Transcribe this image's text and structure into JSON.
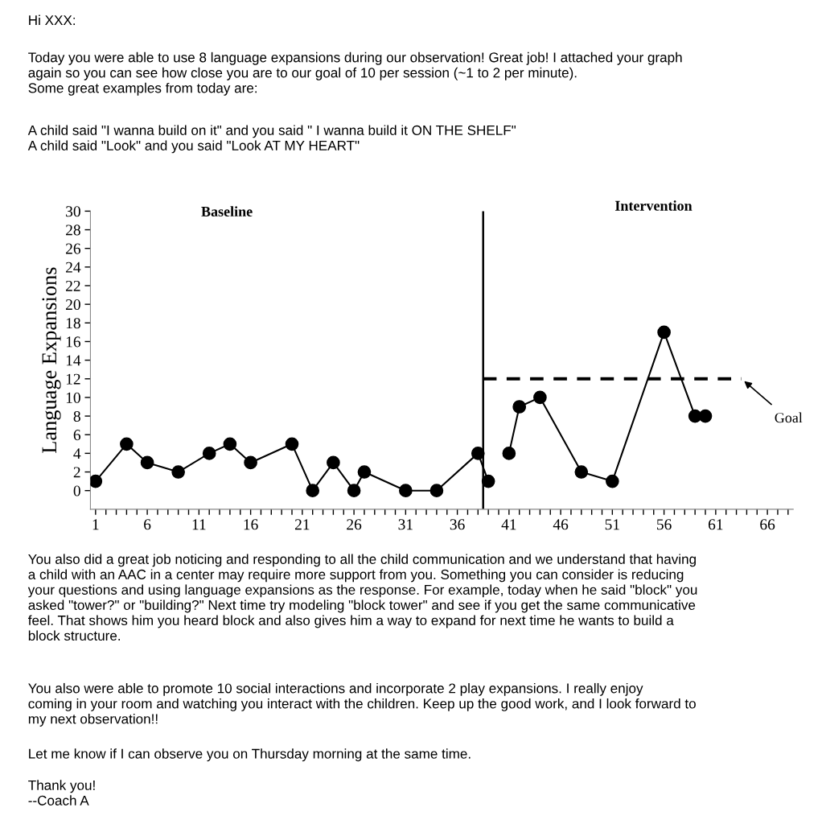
{
  "chart_data": {
    "type": "line",
    "ylabel": "Language Expansions",
    "series": [
      {
        "color": "#000000",
        "x": [
          1,
          4,
          6,
          9,
          12,
          14,
          16,
          20,
          22,
          24,
          26,
          27,
          31,
          34,
          38,
          39
        ],
        "values": [
          1,
          5,
          3,
          2,
          4,
          5,
          3,
          5,
          0,
          3,
          0,
          2,
          0,
          0,
          4,
          1
        ]
      },
      {
        "color": "#000000",
        "x": [
          41,
          42,
          44,
          48,
          51,
          56,
          59,
          60
        ],
        "values": [
          4,
          9,
          10,
          2,
          1,
          17,
          8,
          8
        ]
      },
      {
        "type": "line",
        "color": "#000000",
        "x": [
          38.5,
          63.5
        ],
        "values": [
          12,
          12
        ],
        "line_style": "dashed",
        "marker": "none"
      }
    ],
    "marker": "circle",
    "line_style": "solid",
    "grid": false,
    "legend": false,
    "xlim": [
      0.5,
      68.5
    ],
    "ylim": [
      -2,
      30
    ],
    "xticks": [
      1,
      {
        "value": 2,
        "label": null
      },
      {
        "value": 3,
        "label": null
      },
      {
        "value": 4,
        "label": null
      },
      {
        "value": 5,
        "label": null
      },
      6,
      {
        "value": 7,
        "label": null
      },
      {
        "value": 8,
        "label": null
      },
      {
        "value": 9,
        "label": null
      },
      {
        "value": 10,
        "label": null
      },
      11,
      {
        "value": 12,
        "label": null
      },
      {
        "value": 13,
        "label": null
      },
      {
        "value": 14,
        "label": null
      },
      {
        "value": 15,
        "label": null
      },
      16,
      {
        "value": 17,
        "label": null
      },
      {
        "value": 18,
        "label": null
      },
      {
        "value": 19,
        "label": null
      },
      {
        "value": 20,
        "label": null
      },
      21,
      {
        "value": 22,
        "label": null
      },
      {
        "value": 23,
        "label": null
      },
      {
        "value": 24,
        "label": null
      },
      {
        "value": 25,
        "label": null
      },
      26,
      {
        "value": 27,
        "label": null
      },
      {
        "value": 28,
        "label": null
      },
      {
        "value": 29,
        "label": null
      },
      {
        "value": 30,
        "label": null
      },
      31,
      {
        "value": 32,
        "label": null
      },
      {
        "value": 33,
        "label": null
      },
      {
        "value": 34,
        "label": null
      },
      {
        "value": 35,
        "label": null
      },
      36,
      {
        "value": 37,
        "label": null
      },
      {
        "value": 38,
        "label": null
      },
      {
        "value": 39,
        "label": null
      },
      {
        "value": 40,
        "label": null
      },
      41,
      {
        "value": 42,
        "label": null
      },
      {
        "value": 43,
        "label": null
      },
      {
        "value": 44,
        "label": null
      },
      {
        "value": 45,
        "label": null
      },
      46,
      {
        "value": 47,
        "label": null
      },
      {
        "value": 48,
        "label": null
      },
      {
        "value": 49,
        "label": null
      },
      {
        "value": 50,
        "label": null
      },
      51,
      {
        "value": 52,
        "label": null
      },
      {
        "value": 53,
        "label": null
      },
      {
        "value": 54,
        "label": null
      },
      {
        "value": 55,
        "label": null
      },
      56,
      {
        "value": 57,
        "label": null
      },
      {
        "value": 58,
        "label": null
      },
      {
        "value": 59,
        "label": null
      },
      {
        "value": 60,
        "label": null
      },
      61,
      {
        "value": 62,
        "label": null
      },
      {
        "value": 63,
        "label": null
      },
      {
        "value": 64,
        "label": null
      },
      {
        "value": 65,
        "label": null
      },
      66,
      {
        "value": 67,
        "label": null
      },
      {
        "value": 68,
        "label": null
      }
    ],
    "yticks": [
      0,
      2,
      4,
      6,
      8,
      10,
      12,
      14,
      16,
      18,
      20,
      22,
      24,
      26,
      28,
      30
    ],
    "ref_lines": [
      {
        "axis": "x",
        "value": 38.5,
        "color": "#000000",
        "line_style": "solid"
      }
    ],
    "annotations": [
      "Hi XXX:",
      "Today you were able to use 8 language expansions during our observation! Great job! I attached your graph\nagain so you can see how close you are to our goal of 10 per session (~1 to 2 per minute).\nSome great examples from today are:",
      "A child said \"I wanna build on it\" and you said \" I wanna build it ON THE SHELF\"\nA child said \"Look\" and you said \"Look AT MY HEART\"",
      "Baseline",
      "Intervention",
      {
        "text": "Goal",
        "x": 63.5,
        "y": 12
      },
      "You also did a great job noticing and responding to all the child communication and we understand that having\na child with an AAC in a center may require more support from you. Something you can consider is reducing\nyour questions and using language expansions as the response. For example, today when he said \"block\" you\nasked \"tower?\" or \"building?\" Next time try modeling \"block tower\" and see if you get the same communicative\nfeel. That shows him you heard block and also gives him a way to expand for next time he wants to build a\nblock structure.",
      "You also were able to promote 10 social interactions and incorporate 2 play expansions. I really enjoy\ncoming in your room and watching you interact with the children. Keep up the good work, and I look forward to\nmy next observation!!",
      "Let me know if I can observe you on Thursday morning at the same time.",
      "Thank you!\n--Coach A"
    ]
  }
}
